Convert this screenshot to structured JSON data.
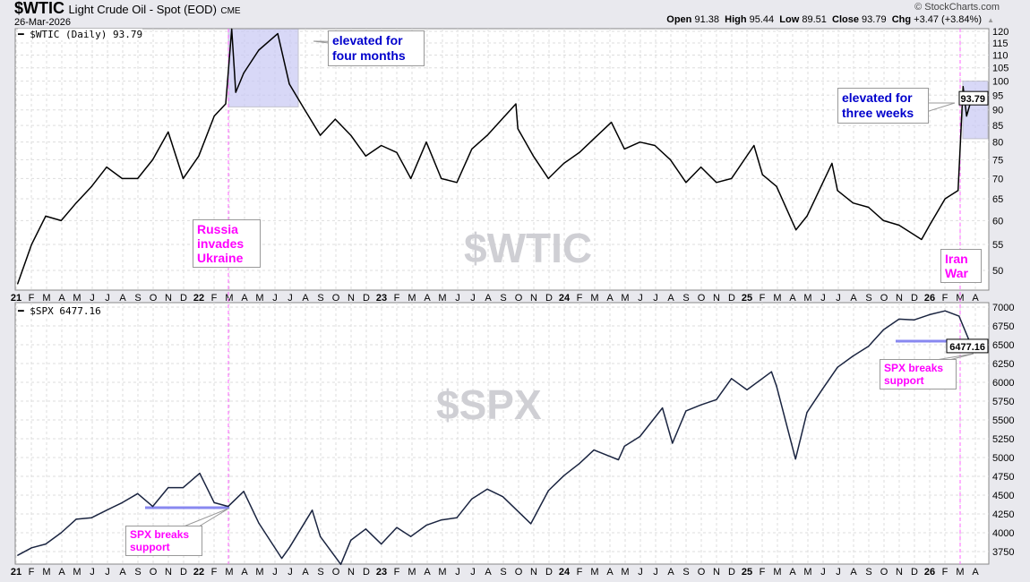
{
  "header": {
    "symbol": "$WTIC",
    "name": "Light Crude Oil - Spot (EOD)",
    "exchange": "CME",
    "date": "26-Mar-2026",
    "brand": "© StockCharts.com",
    "open_label": "Open",
    "open": "91.38",
    "high_label": "High",
    "high": "95.44",
    "low_label": "Low",
    "low": "89.51",
    "close_label": "Close",
    "close": "93.79",
    "chg_label": "Chg",
    "chg": "+3.47 (+3.84%)"
  },
  "colors": {
    "price_line": "#000000",
    "spx_line": "#1a2440",
    "highlight": "#c8c8f5",
    "support": "#8888f0",
    "event_line": "#ff66ff",
    "annotation_pink": "#ff00ff",
    "annotation_blue": "#0000cc"
  },
  "chart_data": [
    {
      "type": "line",
      "title": "$WTIC (Daily) 93.79",
      "watermark": "$WTIC",
      "yscale": "log",
      "ylim": [
        47,
        122
      ],
      "last_value_label": "93.79",
      "yticks": [
        50,
        55,
        60,
        65,
        70,
        75,
        80,
        85,
        90,
        95,
        100,
        105,
        110,
        115,
        120
      ],
      "x": [
        "2021-01-04",
        "2021-02-01",
        "2021-03-01",
        "2021-04-01",
        "2021-05-01",
        "2021-06-01",
        "2021-07-01",
        "2021-08-01",
        "2021-09-01",
        "2021-10-01",
        "2021-11-01",
        "2021-12-01",
        "2022-01-01",
        "2022-02-01",
        "2022-02-24",
        "2022-03-08",
        "2022-03-16",
        "2022-04-01",
        "2022-05-01",
        "2022-06-08",
        "2022-07-01",
        "2022-08-01",
        "2022-09-01",
        "2022-10-01",
        "2022-11-01",
        "2022-12-01",
        "2023-01-01",
        "2023-02-01",
        "2023-03-01",
        "2023-04-01",
        "2023-05-01",
        "2023-06-01",
        "2023-07-01",
        "2023-08-01",
        "2023-09-27",
        "2023-10-01",
        "2023-11-01",
        "2023-12-01",
        "2024-01-01",
        "2024-02-01",
        "2024-03-01",
        "2024-04-05",
        "2024-05-01",
        "2024-06-01",
        "2024-07-01",
        "2024-08-01",
        "2024-09-01",
        "2024-10-01",
        "2024-11-01",
        "2024-12-01",
        "2025-01-15",
        "2025-02-01",
        "2025-03-01",
        "2025-04-09",
        "2025-05-01",
        "2025-06-20",
        "2025-07-01",
        "2025-08-01",
        "2025-09-01",
        "2025-10-01",
        "2025-11-01",
        "2025-12-16",
        "2026-01-01",
        "2026-02-01",
        "2026-02-27",
        "2026-03-09",
        "2026-03-16",
        "2026-03-26"
      ],
      "values": [
        47.6,
        55,
        61,
        60,
        64,
        68,
        73,
        70,
        70,
        75,
        83,
        70,
        76,
        88,
        92,
        121,
        96,
        103,
        112,
        119,
        99,
        90,
        82,
        87,
        82,
        76,
        79,
        77,
        70,
        80,
        70,
        69,
        78,
        82,
        92,
        84,
        76,
        70,
        74,
        77,
        81,
        86,
        78,
        80,
        79,
        75,
        69,
        73,
        69,
        70,
        79,
        71,
        68,
        58,
        61,
        74,
        67,
        64,
        63,
        60,
        59,
        56,
        59,
        65,
        67,
        98,
        88,
        93.79
      ]
    },
    {
      "type": "line",
      "title": "$SPX 6477.16",
      "watermark": "$SPX",
      "yscale": "linear",
      "ylim": [
        3600,
        7050
      ],
      "last_value_label": "6477.16",
      "yticks": [
        3750,
        4000,
        4250,
        4500,
        4750,
        5000,
        5250,
        5500,
        5750,
        6000,
        6250,
        6500,
        6750,
        7000
      ],
      "x": [
        "2021-01-04",
        "2021-02-01",
        "2021-03-01",
        "2021-04-01",
        "2021-05-01",
        "2021-06-01",
        "2021-07-01",
        "2021-08-01",
        "2021-09-01",
        "2021-10-01",
        "2021-11-01",
        "2021-12-01",
        "2022-01-03",
        "2022-02-01",
        "2022-03-01",
        "2022-04-01",
        "2022-05-01",
        "2022-06-16",
        "2022-07-01",
        "2022-08-16",
        "2022-09-01",
        "2022-10-12",
        "2022-11-01",
        "2022-12-01",
        "2023-01-01",
        "2023-02-01",
        "2023-03-01",
        "2023-04-01",
        "2023-05-01",
        "2023-06-01",
        "2023-07-01",
        "2023-08-01",
        "2023-09-01",
        "2023-10-27",
        "2023-12-01",
        "2024-01-01",
        "2024-02-01",
        "2024-03-01",
        "2024-04-19",
        "2024-05-01",
        "2024-06-01",
        "2024-07-16",
        "2024-08-05",
        "2024-09-01",
        "2024-10-01",
        "2024-11-01",
        "2024-12-01",
        "2025-01-01",
        "2025-02-19",
        "2025-03-01",
        "2025-04-08",
        "2025-05-01",
        "2025-06-01",
        "2025-07-01",
        "2025-08-01",
        "2025-09-01",
        "2025-10-01",
        "2025-11-01",
        "2025-12-01",
        "2026-01-01",
        "2026-02-01",
        "2026-03-01",
        "2026-03-26"
      ],
      "values": [
        3700,
        3800,
        3850,
        4000,
        4180,
        4200,
        4300,
        4400,
        4520,
        4350,
        4600,
        4600,
        4790,
        4400,
        4350,
        4550,
        4130,
        3660,
        3800,
        4300,
        3950,
        3580,
        3900,
        4050,
        3850,
        4070,
        3950,
        4100,
        4170,
        4200,
        4450,
        4580,
        4480,
        4120,
        4560,
        4760,
        4920,
        5100,
        4970,
        5150,
        5280,
        5660,
        5190,
        5620,
        5700,
        5770,
        6050,
        5900,
        6140,
        5950,
        4980,
        5600,
        5910,
        6200,
        6350,
        6480,
        6700,
        6840,
        6830,
        6900,
        6950,
        6880,
        6477.16
      ]
    }
  ],
  "xaxis_labels": [
    "21",
    "F",
    "M",
    "A",
    "M",
    "J",
    "J",
    "A",
    "S",
    "O",
    "N",
    "D",
    "22",
    "F",
    "M",
    "A",
    "M",
    "J",
    "J",
    "A",
    "S",
    "O",
    "N",
    "D",
    "23",
    "F",
    "M",
    "A",
    "M",
    "J",
    "J",
    "A",
    "S",
    "O",
    "N",
    "D",
    "24",
    "F",
    "M",
    "A",
    "M",
    "J",
    "J",
    "A",
    "S",
    "O",
    "N",
    "D",
    "25",
    "F",
    "M",
    "A",
    "M",
    "J",
    "J",
    "A",
    "S",
    "O",
    "N",
    "D",
    "26",
    "F",
    "M",
    "A"
  ],
  "annotations": {
    "russia": "Russia invades Ukraine",
    "iran": "Iran War",
    "four_months": "elevated for four months",
    "three_weeks": "elevated for three weeks",
    "spx_support": "SPX breaks support"
  }
}
